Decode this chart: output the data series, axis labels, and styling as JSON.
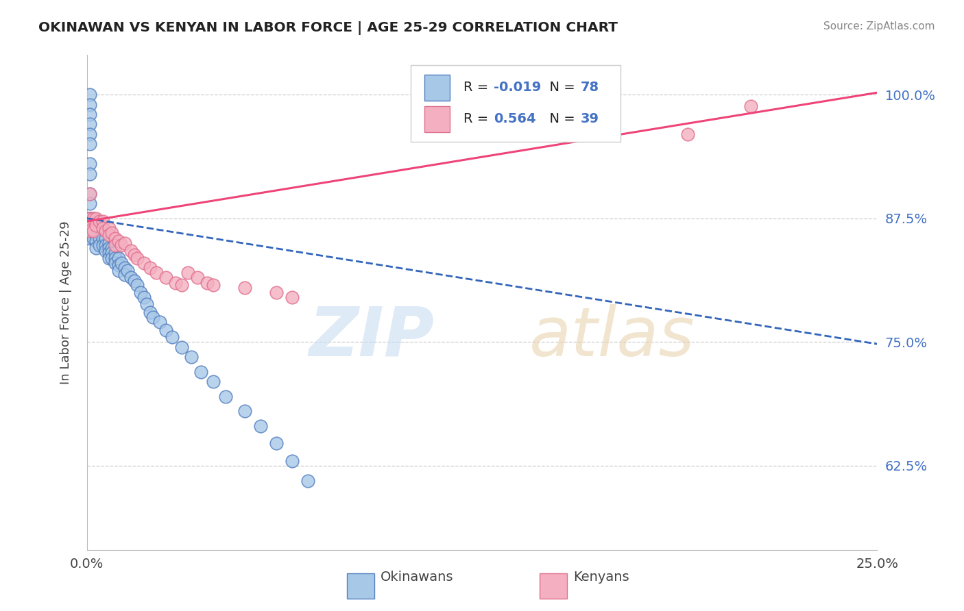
{
  "title": "OKINAWAN VS KENYAN IN LABOR FORCE | AGE 25-29 CORRELATION CHART",
  "source_text": "Source: ZipAtlas.com",
  "ylabel": "In Labor Force | Age 25-29",
  "xlim": [
    0.0,
    0.25
  ],
  "ylim": [
    0.54,
    1.04
  ],
  "yticks": [
    0.625,
    0.75,
    0.875,
    1.0
  ],
  "ytick_labels": [
    "62.5%",
    "75.0%",
    "87.5%",
    "100.0%"
  ],
  "xticks": [
    0.0,
    0.25
  ],
  "xtick_labels": [
    "0.0%",
    "25.0%"
  ],
  "blue_R": -0.019,
  "blue_N": 78,
  "pink_R": 0.564,
  "pink_N": 39,
  "blue_scatter_color": "#a8c8e8",
  "blue_edge_color": "#5580c0",
  "pink_scatter_color": "#f4b0c0",
  "pink_edge_color": "#e07090",
  "blue_line_color": "#3366bb",
  "pink_line_color": "#ee4477",
  "grid_color": "#cccccc",
  "legend_blue_label": "Okinawans",
  "legend_pink_label": "Kenyans",
  "title_color": "#222222",
  "source_color": "#888888",
  "tick_color": "#4472c4",
  "blue_trend_y0": 0.875,
  "blue_trend_y1": 0.748,
  "pink_trend_y0": 0.872,
  "pink_trend_y1": 1.002,
  "blue_x": [
    0.001,
    0.001,
    0.001,
    0.001,
    0.001,
    0.001,
    0.001,
    0.001,
    0.001,
    0.001,
    0.001,
    0.001,
    0.001,
    0.001,
    0.001,
    0.001,
    0.001,
    0.001,
    0.001,
    0.001,
    0.002,
    0.002,
    0.002,
    0.002,
    0.002,
    0.003,
    0.003,
    0.003,
    0.003,
    0.003,
    0.004,
    0.004,
    0.004,
    0.004,
    0.005,
    0.005,
    0.005,
    0.006,
    0.006,
    0.006,
    0.007,
    0.007,
    0.007,
    0.007,
    0.008,
    0.008,
    0.008,
    0.009,
    0.009,
    0.009,
    0.01,
    0.01,
    0.01,
    0.011,
    0.012,
    0.012,
    0.013,
    0.014,
    0.015,
    0.016,
    0.017,
    0.018,
    0.019,
    0.02,
    0.021,
    0.023,
    0.025,
    0.027,
    0.03,
    0.033,
    0.036,
    0.04,
    0.044,
    0.05,
    0.055,
    0.06,
    0.065,
    0.07
  ],
  "blue_y": [
    1.0,
    0.99,
    0.98,
    0.97,
    0.96,
    0.95,
    0.93,
    0.92,
    0.9,
    0.89,
    0.875,
    0.875,
    0.875,
    0.875,
    0.875,
    0.875,
    0.87,
    0.865,
    0.86,
    0.855,
    0.875,
    0.87,
    0.865,
    0.86,
    0.855,
    0.87,
    0.865,
    0.858,
    0.852,
    0.845,
    0.87,
    0.86,
    0.855,
    0.848,
    0.86,
    0.855,
    0.848,
    0.855,
    0.848,
    0.842,
    0.85,
    0.845,
    0.84,
    0.835,
    0.845,
    0.84,
    0.835,
    0.84,
    0.835,
    0.83,
    0.835,
    0.828,
    0.822,
    0.83,
    0.825,
    0.818,
    0.822,
    0.815,
    0.812,
    0.808,
    0.8,
    0.795,
    0.788,
    0.78,
    0.775,
    0.77,
    0.762,
    0.755,
    0.745,
    0.735,
    0.72,
    0.71,
    0.695,
    0.68,
    0.665,
    0.648,
    0.63,
    0.61
  ],
  "pink_x": [
    0.001,
    0.001,
    0.001,
    0.001,
    0.001,
    0.002,
    0.002,
    0.003,
    0.003,
    0.004,
    0.005,
    0.005,
    0.006,
    0.007,
    0.007,
    0.008,
    0.009,
    0.009,
    0.01,
    0.011,
    0.012,
    0.014,
    0.015,
    0.016,
    0.018,
    0.02,
    0.022,
    0.025,
    0.028,
    0.03,
    0.032,
    0.035,
    0.038,
    0.04,
    0.05,
    0.06,
    0.065,
    0.19,
    0.21
  ],
  "pink_y": [
    0.9,
    0.875,
    0.875,
    0.87,
    0.862,
    0.875,
    0.862,
    0.875,
    0.868,
    0.872,
    0.872,
    0.865,
    0.862,
    0.865,
    0.858,
    0.86,
    0.855,
    0.848,
    0.852,
    0.848,
    0.85,
    0.842,
    0.838,
    0.835,
    0.83,
    0.825,
    0.82,
    0.815,
    0.81,
    0.808,
    0.82,
    0.815,
    0.81,
    0.808,
    0.805,
    0.8,
    0.795,
    0.96,
    0.988
  ]
}
